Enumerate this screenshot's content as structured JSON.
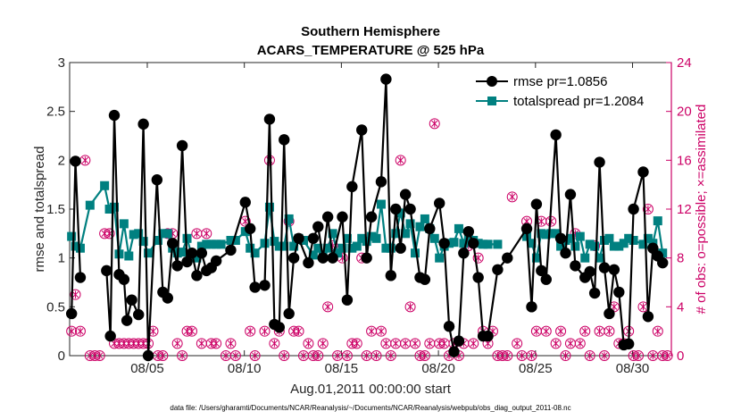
{
  "chart_data": {
    "type": "line",
    "title": "Southern Hemisphere",
    "subtitle": "ACARS_TEMPERATURE @ 525 hPa",
    "xlabel": "Aug.01,2011 00:00:00 start",
    "ylabel_left": "rmse and totalspread",
    "ylabel_right": "# of obs: o=possible; ×=assimilated",
    "xlim": [
      1.0,
      32.0
    ],
    "ylim_left": [
      0,
      3
    ],
    "ylim_right": [
      0,
      24
    ],
    "x_ticks": [
      5,
      10,
      15,
      20,
      25,
      30
    ],
    "x_tick_labels": [
      "08/05",
      "08/10",
      "08/15",
      "08/20",
      "08/25",
      "08/30"
    ],
    "y_left_ticks": [
      0,
      0.5,
      1,
      1.5,
      2,
      2.5,
      3
    ],
    "y_left_tick_labels": [
      "0",
      "0.5",
      "1",
      "1.5",
      "2",
      "2.5",
      "3"
    ],
    "y_right_ticks": [
      0,
      4,
      8,
      12,
      16,
      20,
      24
    ],
    "y_right_tick_labels": [
      "0",
      "4",
      "8",
      "12",
      "16",
      "20",
      "24"
    ],
    "footnote": "data file: /Users/gharamti/Documents/NCAR/Reanalysis/~/Documents/NCAR/Reanalysis/webpub/obs_diag_output_2011-08.nc",
    "colors": {
      "rmse": "#000000",
      "spread": "#008080",
      "obs": "#cc0066",
      "axis": "#262626",
      "right_axis": "#cc0066"
    },
    "series": [
      {
        "name": "rmse pr=1.0856",
        "axis": "left",
        "marker": "circle",
        "x": [
          1.1,
          1.3,
          1.55,
          2.9,
          3.1,
          3.3,
          3.55,
          3.8,
          3.95,
          4.2,
          4.55,
          4.8,
          5.05,
          5.5,
          5.8,
          6.05,
          6.3,
          6.55,
          6.8,
          7.05,
          7.3,
          7.55,
          7.8,
          8.05,
          8.3,
          8.55,
          9.3,
          10.05,
          10.3,
          10.55,
          11.05,
          11.3,
          11.55,
          11.8,
          12.05,
          12.3,
          12.55,
          12.8,
          13.3,
          13.55,
          13.8,
          14.05,
          14.3,
          14.55,
          15.05,
          15.3,
          15.55,
          16.05,
          16.3,
          16.55,
          17.05,
          17.3,
          17.55,
          17.8,
          18.05,
          18.3,
          18.55,
          19.05,
          19.3,
          19.55,
          20.05,
          20.3,
          20.55,
          20.8,
          21.05,
          21.3,
          21.55,
          21.8,
          22.05,
          22.3,
          22.55,
          23.05,
          23.55,
          24.55,
          24.8,
          25.05,
          25.3,
          25.55,
          26.05,
          26.3,
          26.55,
          26.8,
          27.05,
          27.55,
          27.8,
          28.05,
          28.3,
          28.55,
          28.8,
          29.05,
          29.3,
          29.55,
          29.8,
          30.05,
          30.55,
          30.8,
          31.05,
          31.3,
          31.55
        ],
        "values": [
          0.43,
          1.99,
          0.8,
          0.87,
          0.2,
          2.46,
          0.83,
          0.78,
          0.36,
          0.57,
          0.42,
          2.37,
          0.0,
          1.8,
          0.65,
          0.59,
          1.15,
          0.92,
          2.15,
          0.96,
          1.05,
          0.82,
          1.05,
          0.87,
          0.9,
          0.97,
          1.08,
          1.57,
          1.3,
          0.7,
          0.72,
          2.42,
          0.32,
          0.29,
          2.21,
          0.43,
          1.0,
          1.2,
          0.95,
          1.2,
          1.32,
          1.0,
          1.42,
          1.0,
          1.42,
          0.57,
          1.73,
          2.31,
          1.0,
          1.42,
          1.78,
          2.83,
          0.82,
          1.5,
          1.1,
          1.65,
          1.5,
          0.8,
          0.78,
          1.3,
          1.56,
          1.15,
          0.3,
          0.04,
          0.15,
          1.05,
          1.27,
          1.15,
          0.8,
          0.2,
          0.2,
          0.88,
          1.0,
          1.3,
          0.5,
          1.55,
          0.87,
          0.78,
          2.26,
          1.2,
          1.05,
          1.65,
          0.92,
          0.8,
          0.86,
          0.64,
          1.98,
          0.9,
          0.43,
          0.88,
          0.65,
          0.11,
          0.12,
          1.5,
          1.88,
          0.4,
          1.1,
          1.02,
          0.95
        ]
      },
      {
        "name": "totalspread pr=1.2084",
        "axis": "left",
        "marker": "square",
        "x": [
          1.1,
          1.3,
          1.55,
          2.05,
          2.8,
          3.05,
          3.3,
          3.55,
          3.8,
          4.05,
          4.3,
          4.55,
          4.8,
          5.05,
          5.55,
          5.8,
          6.05,
          6.3,
          6.55,
          6.8,
          7.05,
          7.3,
          7.55,
          7.8,
          8.05,
          8.3,
          8.55,
          8.8,
          9.3,
          9.55,
          10.05,
          10.3,
          10.55,
          11.05,
          11.3,
          11.55,
          11.8,
          12.05,
          12.3,
          12.55,
          12.8,
          13.05,
          13.55,
          13.8,
          14.05,
          14.3,
          14.55,
          14.8,
          15.05,
          15.3,
          15.55,
          15.8,
          16.05,
          16.3,
          16.55,
          16.8,
          17.05,
          17.3,
          17.55,
          17.8,
          18.05,
          18.3,
          18.55,
          18.8,
          19.05,
          19.3,
          19.55,
          19.8,
          20.05,
          20.3,
          20.55,
          20.8,
          21.05,
          21.3,
          21.55,
          21.8,
          22.05,
          22.3,
          22.55,
          23.05,
          24.55,
          24.8,
          25.05,
          25.3,
          25.55,
          25.8,
          26.05,
          26.3,
          26.55,
          26.8,
          27.05,
          27.3,
          27.55,
          27.8,
          28.05,
          28.3,
          28.55,
          28.8,
          29.05,
          29.3,
          29.55,
          29.8,
          30.05,
          30.55,
          30.8,
          31.05,
          31.3,
          31.55
        ],
        "values": [
          1.22,
          1.12,
          1.1,
          1.54,
          1.74,
          1.5,
          1.52,
          1.04,
          1.35,
          1.02,
          1.24,
          1.25,
          1.17,
          1.05,
          1.18,
          1.25,
          1.25,
          1.1,
          1.05,
          1.06,
          1.2,
          1.02,
          1.0,
          1.12,
          1.14,
          1.14,
          1.14,
          1.14,
          1.18,
          1.18,
          1.27,
          1.1,
          1.05,
          1.15,
          1.52,
          1.17,
          1.12,
          1.12,
          1.4,
          1.12,
          1.2,
          1.18,
          1.03,
          1.1,
          1.02,
          1.1,
          1.25,
          1.05,
          1.1,
          1.2,
          1.1,
          1.12,
          1.2,
          1.17,
          1.22,
          1.2,
          1.55,
          1.1,
          1.1,
          1.25,
          1.46,
          1.25,
          1.35,
          1.05,
          1.32,
          1.4,
          1.3,
          1.2,
          1.0,
          1.12,
          1.15,
          1.16,
          1.3,
          1.15,
          1.2,
          1.18,
          1.15,
          1.14,
          1.14,
          1.14,
          1.22,
          1.15,
          1.0,
          1.25,
          1.24,
          1.25,
          1.25,
          1.12,
          1.18,
          1.2,
          1.12,
          1.22,
          1.0,
          1.14,
          1.12,
          1.0,
          1.18,
          1.2,
          1.12,
          1.12,
          1.15,
          1.2,
          1.18,
          1.14,
          1.2,
          1.15,
          1.38,
          1.05
        ],
        "note": "line connects consecutive points only where gaps are small"
      },
      {
        "name": "# of obs possible",
        "axis": "right",
        "marker": "open-circle",
        "x": [
          1.1,
          1.3,
          1.55,
          1.8,
          2.05,
          2.3,
          2.55,
          2.8,
          3.05,
          3.3,
          3.55,
          3.8,
          4.05,
          4.3,
          4.55,
          4.8,
          5.05,
          5.3,
          5.55,
          5.8,
          6.05,
          6.3,
          6.55,
          6.8,
          7.05,
          7.3,
          7.55,
          7.8,
          8.05,
          8.3,
          8.55,
          9.05,
          9.3,
          9.55,
          10.05,
          10.3,
          10.55,
          11.05,
          11.3,
          11.55,
          11.8,
          12.05,
          12.3,
          12.55,
          12.8,
          13.05,
          13.3,
          13.55,
          13.8,
          14.05,
          14.3,
          14.55,
          14.8,
          15.05,
          15.3,
          15.55,
          15.8,
          16.05,
          16.3,
          16.55,
          16.8,
          17.05,
          17.3,
          17.55,
          17.8,
          18.05,
          18.3,
          18.55,
          18.8,
          19.05,
          19.3,
          19.55,
          19.8,
          20.05,
          20.3,
          20.55,
          20.8,
          21.05,
          21.3,
          21.55,
          21.8,
          22.05,
          22.3,
          22.55,
          22.8,
          23.05,
          23.3,
          23.55,
          23.8,
          24.05,
          24.3,
          24.55,
          24.8,
          25.05,
          25.3,
          25.55,
          25.8,
          26.05,
          26.3,
          26.55,
          26.8,
          27.05,
          27.3,
          27.55,
          27.8,
          28.05,
          28.3,
          28.55,
          28.8,
          29.05,
          29.3,
          29.55,
          29.8,
          30.05,
          30.3,
          30.55,
          30.8,
          31.05,
          31.3,
          31.55,
          31.8
        ],
        "values": [
          2,
          5,
          2,
          16,
          0,
          0,
          0,
          10,
          10,
          1,
          1,
          1,
          1,
          1,
          1,
          1,
          1,
          2,
          0,
          0,
          10,
          10,
          1,
          0,
          2,
          2,
          10,
          1,
          10,
          1,
          1,
          0,
          1,
          0,
          11,
          2,
          0,
          2,
          16,
          1,
          2,
          0,
          11,
          2,
          2,
          0,
          1,
          0,
          0,
          1,
          4,
          9,
          0,
          8,
          0,
          1,
          1,
          8,
          0,
          2,
          0,
          2,
          1,
          0,
          1,
          16,
          1,
          4,
          1,
          0,
          0,
          1,
          19,
          1,
          1,
          0,
          1,
          0,
          1,
          9,
          1,
          8,
          2,
          1,
          2,
          0,
          0,
          0,
          13,
          1,
          0,
          11,
          0,
          2,
          11,
          2,
          11,
          1,
          2,
          0,
          1,
          10,
          1,
          2,
          0,
          9,
          2,
          0,
          2,
          4,
          1,
          1,
          2,
          0,
          0,
          4,
          12,
          0,
          2,
          0,
          0
        ]
      },
      {
        "name": "# of obs assimilated",
        "axis": "right",
        "marker": "x",
        "x": [
          1.1,
          1.3,
          1.55,
          1.8,
          2.05,
          2.3,
          2.55,
          2.8,
          3.05,
          3.3,
          3.55,
          3.8,
          4.05,
          4.3,
          4.55,
          4.8,
          5.05,
          5.3,
          5.55,
          5.8,
          6.05,
          6.3,
          6.55,
          6.8,
          7.05,
          7.3,
          7.55,
          7.8,
          8.05,
          8.3,
          8.55,
          9.05,
          9.3,
          9.55,
          10.05,
          10.3,
          10.55,
          11.05,
          11.3,
          11.55,
          11.8,
          12.05,
          12.3,
          12.55,
          12.8,
          13.05,
          13.3,
          13.55,
          13.8,
          14.05,
          14.3,
          14.55,
          14.8,
          15.05,
          15.3,
          15.55,
          15.8,
          16.05,
          16.3,
          16.55,
          16.8,
          17.05,
          17.3,
          17.55,
          17.8,
          18.05,
          18.3,
          18.55,
          18.8,
          19.05,
          19.3,
          19.55,
          19.8,
          20.05,
          20.3,
          20.55,
          20.8,
          21.05,
          21.3,
          21.55,
          21.8,
          22.05,
          22.3,
          22.55,
          22.8,
          23.05,
          23.3,
          23.55,
          23.8,
          24.05,
          24.3,
          24.55,
          24.8,
          25.05,
          25.3,
          25.55,
          25.8,
          26.05,
          26.3,
          26.55,
          26.8,
          27.05,
          27.3,
          27.55,
          27.8,
          28.05,
          28.3,
          28.55,
          28.8,
          29.05,
          29.3,
          29.55,
          29.8,
          30.05,
          30.3,
          30.55,
          30.8,
          31.05,
          31.3,
          31.55,
          31.8
        ],
        "values": [
          2,
          5,
          2,
          16,
          0,
          0,
          0,
          10,
          10,
          1,
          1,
          1,
          1,
          1,
          1,
          1,
          1,
          2,
          0,
          0,
          10,
          10,
          1,
          0,
          2,
          2,
          10,
          1,
          10,
          1,
          1,
          0,
          1,
          0,
          11,
          2,
          0,
          2,
          16,
          1,
          2,
          0,
          11,
          2,
          2,
          0,
          1,
          0,
          0,
          1,
          4,
          9,
          0,
          8,
          0,
          1,
          1,
          8,
          0,
          2,
          0,
          2,
          1,
          0,
          1,
          16,
          1,
          4,
          1,
          0,
          0,
          1,
          19,
          1,
          1,
          0,
          1,
          0,
          1,
          9,
          1,
          8,
          2,
          1,
          2,
          0,
          0,
          0,
          13,
          1,
          0,
          11,
          0,
          2,
          11,
          2,
          11,
          1,
          2,
          0,
          1,
          10,
          1,
          2,
          0,
          9,
          2,
          0,
          2,
          4,
          1,
          1,
          2,
          0,
          0,
          4,
          12,
          0,
          2,
          0,
          0
        ]
      }
    ],
    "legend": {
      "placement": "top-right",
      "entries": [
        "rmse pr=1.0856",
        "totalspread pr=1.2084"
      ]
    }
  }
}
